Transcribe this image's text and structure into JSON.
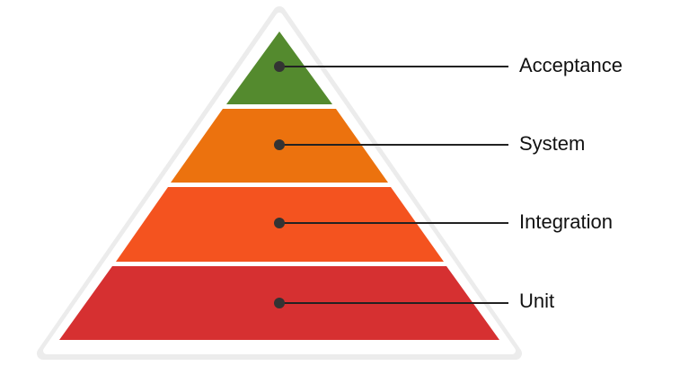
{
  "levels": [
    {
      "label": "Acceptance"
    },
    {
      "label": "System"
    },
    {
      "label": "Integration"
    },
    {
      "label": "Unit"
    }
  ]
}
